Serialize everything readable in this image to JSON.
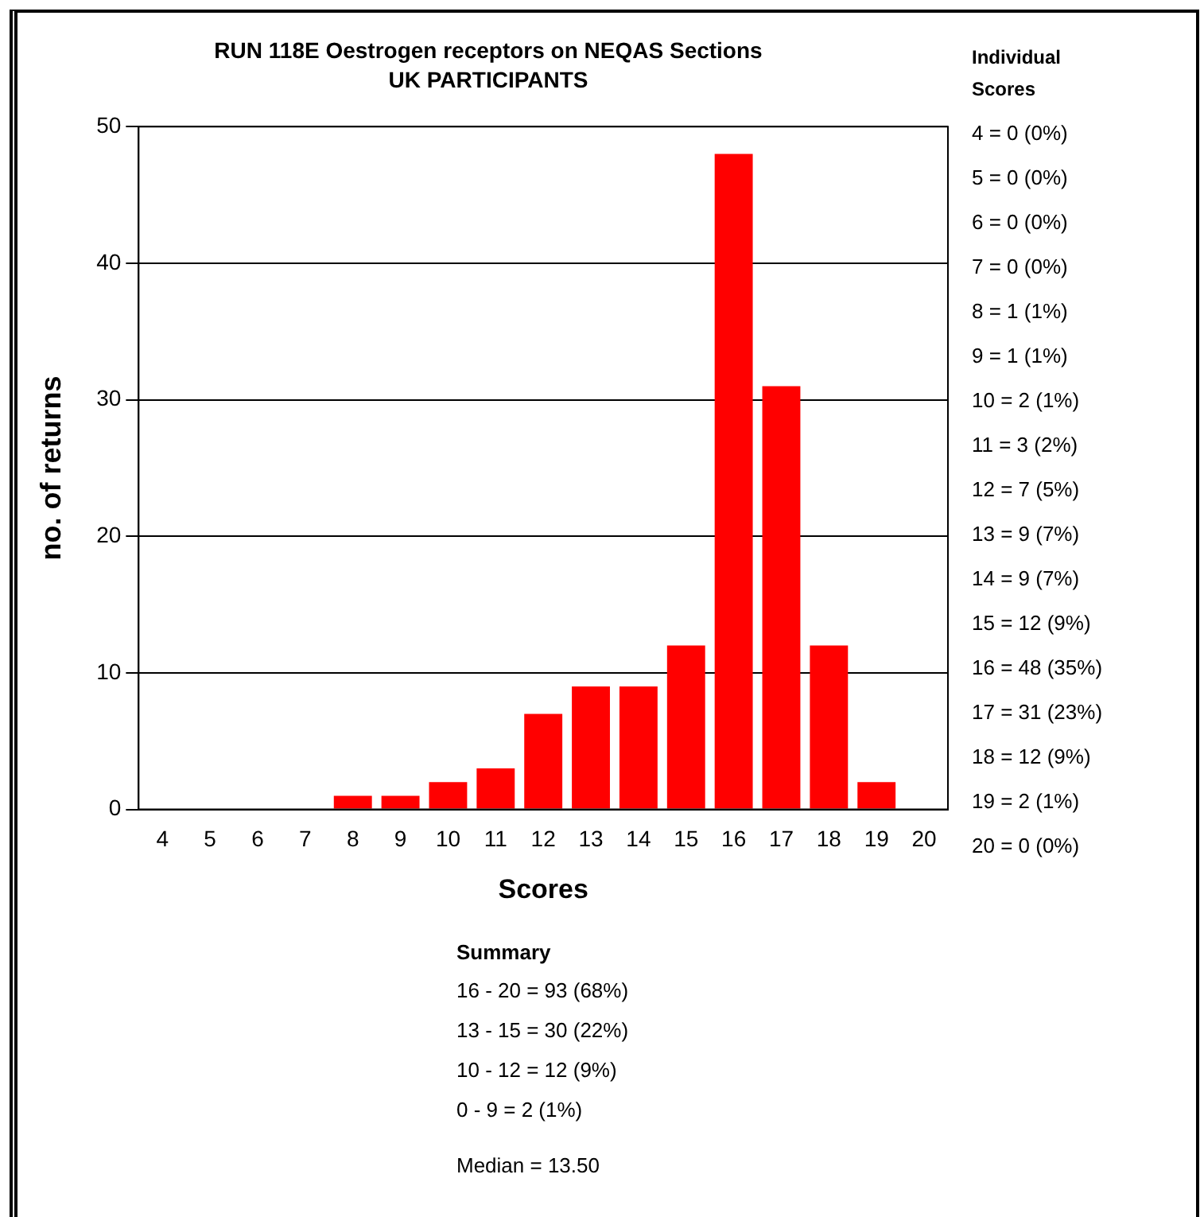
{
  "chart_data": {
    "type": "bar",
    "title": "RUN 118E Oestrogen receptors on NEQAS Sections",
    "subtitle": "UK PARTICIPANTS",
    "xlabel": "Scores",
    "ylabel": "no. of returns",
    "categories": [
      "4",
      "5",
      "6",
      "7",
      "8",
      "9",
      "10",
      "11",
      "12",
      "13",
      "14",
      "15",
      "16",
      "17",
      "18",
      "19",
      "20"
    ],
    "values": [
      0,
      0,
      0,
      0,
      1,
      1,
      2,
      3,
      7,
      9,
      9,
      12,
      48,
      31,
      12,
      2,
      0
    ],
    "color": "#ff0000",
    "ylim": [
      0,
      50
    ],
    "yticks": [
      0,
      10,
      20,
      30,
      40,
      50
    ],
    "grid": "y",
    "annotations": [
      "Individual Scores",
      "4 = 0 (0%)",
      "5 = 0 (0%)",
      "6 = 0 (0%)",
      "7 = 0 (0%)",
      "8 = 1 (1%)",
      "9 = 1 (1%)",
      "10 = 2 (1%)",
      "11 = 3 (2%)",
      "12 = 7 (5%)",
      "13 = 9 (7%)",
      "14 = 9 (7%)",
      "15 = 12 (9%)",
      "16 = 48 (35%)",
      "17 = 31 (23%)",
      "18 = 12 (9%)",
      "19 = 2 (1%)",
      "20 = 0 (0%)",
      "Summary",
      "16 - 20 = 93 (68%)",
      "13 - 15 = 30 (22%)",
      "10 - 12 = 12 (9%)",
      "0 - 9 = 2 (1%)",
      "Median = 13.50"
    ]
  }
}
